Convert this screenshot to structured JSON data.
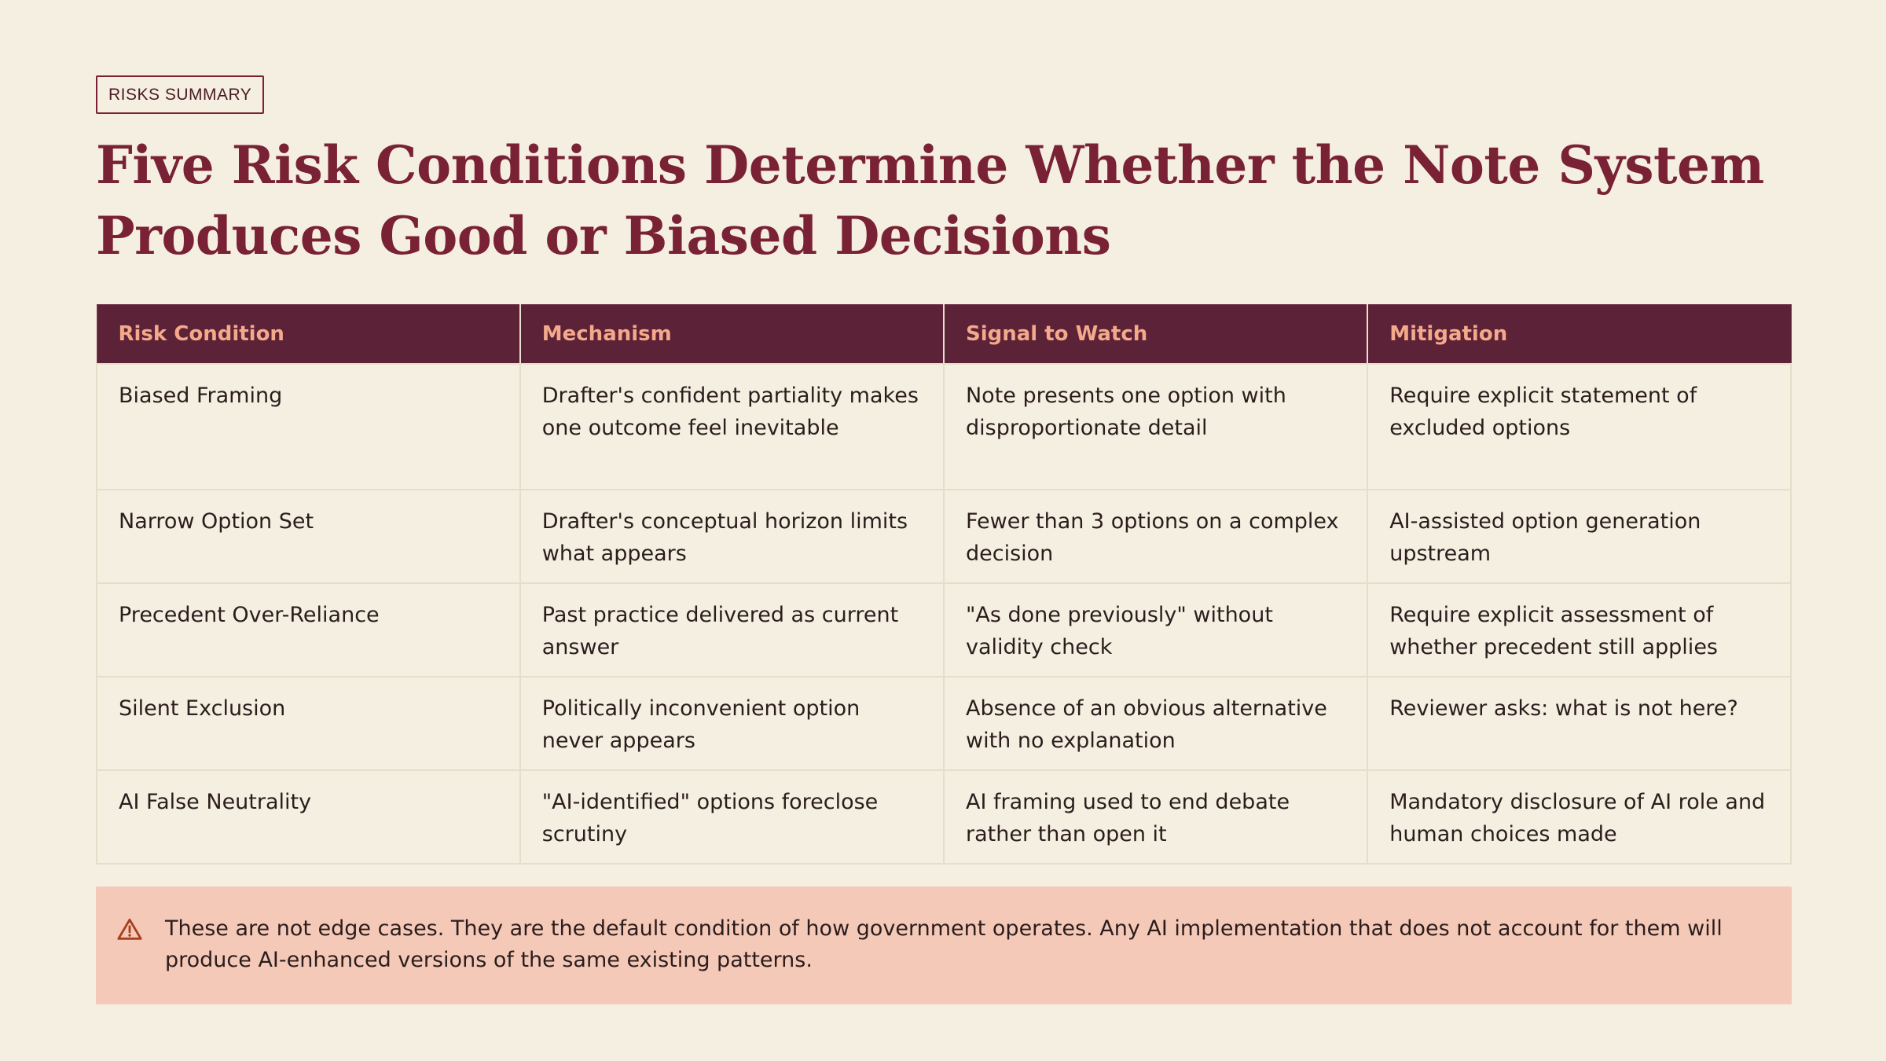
{
  "tag": "RISKS SUMMARY",
  "title": "Five Risk Conditions Determine Whether the Note System Produces Good or Biased Decisions",
  "table": {
    "headers": [
      "Risk Condition",
      "Mechanism",
      "Signal to Watch",
      "Mitigation"
    ],
    "rows": [
      [
        "Biased Framing",
        "Drafter's confident partiality makes one outcome feel inevitable",
        "Note presents one option with disproportionate detail",
        "Require explicit statement of excluded options"
      ],
      [
        "Narrow Option Set",
        "Drafter's conceptual horizon limits what appears",
        "Fewer than 3 options on a complex decision",
        "AI-assisted option generation upstream"
      ],
      [
        "Precedent Over-Reliance",
        "Past practice delivered as current answer",
        "\"As done previously\" without validity check",
        "Require explicit assessment of whether precedent still applies"
      ],
      [
        "Silent Exclusion",
        "Politically inconvenient option never appears",
        "Absence of an obvious alternative with no explanation",
        "Reviewer asks: what is not here?"
      ],
      [
        "AI False Neutrality",
        "\"AI-identified\" options foreclose scrutiny",
        "AI framing used to end debate rather than open it",
        "Mandatory disclosure of AI role and human choices made"
      ]
    ]
  },
  "callout": {
    "icon": "warning-triangle-icon",
    "text": "These are not edge cases. They are the default condition of how government operates. Any AI implementation that does not account for them will produce AI-enhanced versions of the same existing patterns."
  },
  "colors": {
    "background": "#f5efe1",
    "accent": "#7a2235",
    "header_bg": "#5c2238",
    "header_text": "#f4a98a",
    "callout_bg": "#f5c9b8"
  }
}
